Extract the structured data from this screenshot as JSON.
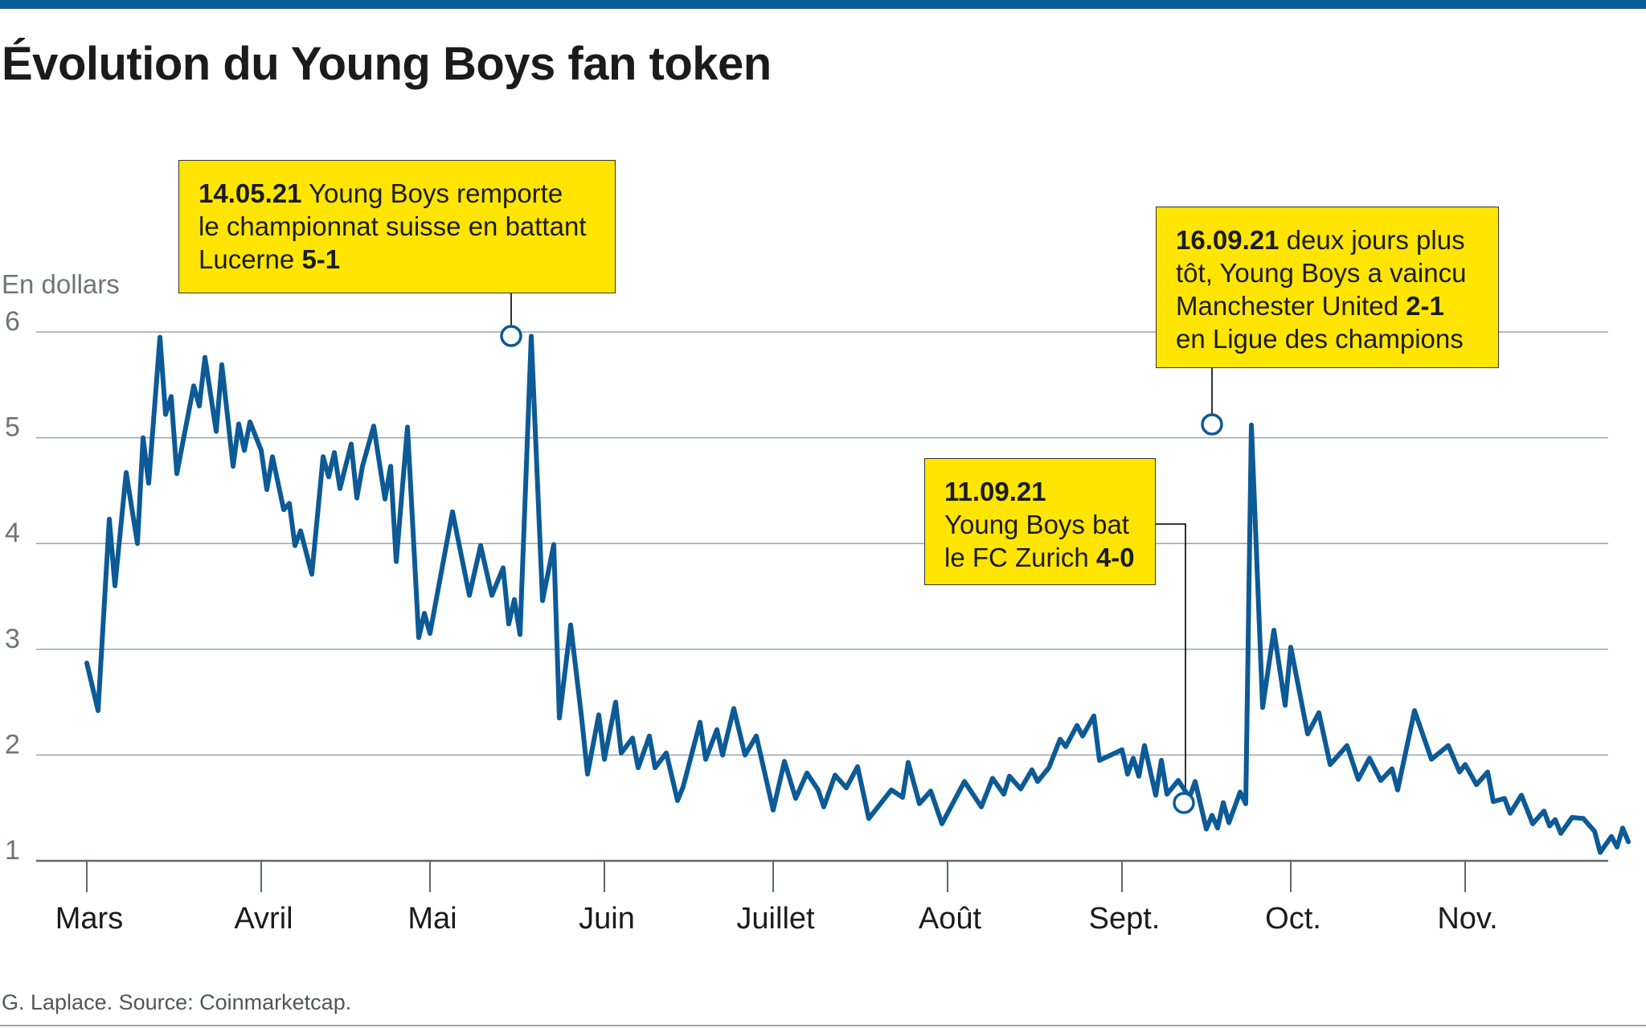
{
  "title": "Évolution du Young Boys fan token",
  "source": "G. Laplace. Source: Coinmarketcap.",
  "colors": {
    "line": "#0c5a96",
    "annotation_fill": "#ffe500",
    "gridline": "#9aa4ab",
    "top_bar": "#0c5a96"
  },
  "annotations": [
    {
      "date_bold": "14.05.21",
      "rest": [
        " Young Boys remporte",
        "le championnat suisse en battant",
        "Lucerne "
      ],
      "score": "5-1",
      "x": "2021-05-14",
      "y": 5.96
    },
    {
      "date_bold": "11.09.21",
      "rest": [
        "Young Boys bat",
        "le FC Zurich "
      ],
      "score": "4-0",
      "x": "2021-09-11",
      "y": 1.55
    },
    {
      "date_bold": "16.09.21",
      "rest": [
        " deux jours plus",
        "tôt, Young Boys a vaincu",
        "Manchester United ",
        "en Ligue des champions"
      ],
      "score": "2-1",
      "x": "2021-09-16",
      "y": 5.12
    }
  ],
  "chart_data": {
    "type": "line",
    "ylabel": "En dollars",
    "xlabel": "",
    "ylim": [
      1,
      6
    ],
    "yticks": [
      1,
      2,
      3,
      4,
      5,
      6
    ],
    "xlim": [
      "2021-03-01",
      "2021-11-26"
    ],
    "xticks": [
      {
        "label": "Mars",
        "date": "2021-03-01"
      },
      {
        "label": "Avril",
        "date": "2021-04-01"
      },
      {
        "label": "Mai",
        "date": "2021-05-01"
      },
      {
        "label": "Juin",
        "date": "2021-06-01"
      },
      {
        "label": "Juillet",
        "date": "2021-07-01"
      },
      {
        "label": "Août",
        "date": "2021-08-01"
      },
      {
        "label": "Sept.",
        "date": "2021-09-01"
      },
      {
        "label": "Oct.",
        "date": "2021-10-01"
      },
      {
        "label": "Nov.",
        "date": "2021-11-01"
      }
    ],
    "grid": true,
    "legend": "none",
    "series": [
      {
        "points": [
          [
            "2021-03-01",
            2.87
          ],
          [
            "2021-03-03",
            2.42
          ],
          [
            "2021-03-05",
            4.23
          ],
          [
            "2021-03-06",
            3.6
          ],
          [
            "2021-03-08",
            4.67
          ],
          [
            "2021-03-10",
            4.0
          ],
          [
            "2021-03-11",
            5.0
          ],
          [
            "2021-03-12",
            4.57
          ],
          [
            "2021-03-14",
            5.95
          ],
          [
            "2021-03-15",
            5.22
          ],
          [
            "2021-03-16",
            5.39
          ],
          [
            "2021-03-17",
            4.66
          ],
          [
            "2021-03-20",
            5.49
          ],
          [
            "2021-03-21",
            5.3
          ],
          [
            "2021-03-22",
            5.76
          ],
          [
            "2021-03-24",
            5.06
          ],
          [
            "2021-03-25",
            5.69
          ],
          [
            "2021-03-27",
            4.73
          ],
          [
            "2021-03-28",
            5.13
          ],
          [
            "2021-03-29",
            4.88
          ],
          [
            "2021-03-30",
            5.15
          ],
          [
            "2021-04-01",
            4.88
          ],
          [
            "2021-04-02",
            4.51
          ],
          [
            "2021-04-03",
            4.82
          ],
          [
            "2021-04-05",
            4.32
          ],
          [
            "2021-04-06",
            4.38
          ],
          [
            "2021-04-07",
            3.98
          ],
          [
            "2021-04-08",
            4.12
          ],
          [
            "2021-04-10",
            3.71
          ],
          [
            "2021-04-12",
            4.82
          ],
          [
            "2021-04-13",
            4.63
          ],
          [
            "2021-04-14",
            4.86
          ],
          [
            "2021-04-15",
            4.52
          ],
          [
            "2021-04-17",
            4.94
          ],
          [
            "2021-04-18",
            4.43
          ],
          [
            "2021-04-19",
            4.73
          ],
          [
            "2021-04-21",
            5.11
          ],
          [
            "2021-04-23",
            4.42
          ],
          [
            "2021-04-24",
            4.73
          ],
          [
            "2021-04-25",
            3.83
          ],
          [
            "2021-04-27",
            5.1
          ],
          [
            "2021-04-29",
            3.11
          ],
          [
            "2021-04-30",
            3.34
          ],
          [
            "2021-05-01",
            3.15
          ],
          [
            "2021-05-05",
            4.3
          ],
          [
            "2021-05-08",
            3.51
          ],
          [
            "2021-05-10",
            3.98
          ],
          [
            "2021-05-12",
            3.51
          ],
          [
            "2021-05-14",
            3.77
          ],
          [
            "2021-05-15",
            3.24
          ],
          [
            "2021-05-16",
            3.47
          ],
          [
            "2021-05-17",
            3.14
          ],
          [
            "2021-05-19",
            5.96
          ],
          [
            "2021-05-21",
            3.46
          ],
          [
            "2021-05-23",
            3.99
          ],
          [
            "2021-05-24",
            2.35
          ],
          [
            "2021-05-26",
            3.23
          ],
          [
            "2021-05-28",
            2.33
          ],
          [
            "2021-05-29",
            1.82
          ],
          [
            "2021-05-31",
            2.38
          ],
          [
            "2021-06-01",
            1.96
          ],
          [
            "2021-06-03",
            2.5
          ],
          [
            "2021-06-04",
            2.02
          ],
          [
            "2021-06-06",
            2.16
          ],
          [
            "2021-06-07",
            1.88
          ],
          [
            "2021-06-09",
            2.18
          ],
          [
            "2021-06-10",
            1.88
          ],
          [
            "2021-06-12",
            2.02
          ],
          [
            "2021-06-14",
            1.57
          ],
          [
            "2021-06-15",
            1.7
          ],
          [
            "2021-06-18",
            2.31
          ],
          [
            "2021-06-19",
            1.96
          ],
          [
            "2021-06-21",
            2.24
          ],
          [
            "2021-06-22",
            2.0
          ],
          [
            "2021-06-24",
            2.44
          ],
          [
            "2021-06-26",
            2.0
          ],
          [
            "2021-06-28",
            2.18
          ],
          [
            "2021-07-01",
            1.48
          ],
          [
            "2021-07-03",
            1.94
          ],
          [
            "2021-07-05",
            1.59
          ],
          [
            "2021-07-07",
            1.83
          ],
          [
            "2021-07-09",
            1.67
          ],
          [
            "2021-07-10",
            1.51
          ],
          [
            "2021-07-12",
            1.81
          ],
          [
            "2021-07-14",
            1.69
          ],
          [
            "2021-07-16",
            1.89
          ],
          [
            "2021-07-18",
            1.4
          ],
          [
            "2021-07-22",
            1.67
          ],
          [
            "2021-07-24",
            1.6
          ],
          [
            "2021-07-25",
            1.93
          ],
          [
            "2021-07-27",
            1.54
          ],
          [
            "2021-07-29",
            1.66
          ],
          [
            "2021-07-31",
            1.35
          ],
          [
            "2021-08-04",
            1.75
          ],
          [
            "2021-08-07",
            1.51
          ],
          [
            "2021-08-09",
            1.78
          ],
          [
            "2021-08-11",
            1.63
          ],
          [
            "2021-08-12",
            1.8
          ],
          [
            "2021-08-14",
            1.68
          ],
          [
            "2021-08-16",
            1.86
          ],
          [
            "2021-08-17",
            1.75
          ],
          [
            "2021-08-19",
            1.88
          ],
          [
            "2021-08-21",
            2.15
          ],
          [
            "2021-08-22",
            2.08
          ],
          [
            "2021-08-24",
            2.28
          ],
          [
            "2021-08-25",
            2.18
          ],
          [
            "2021-08-27",
            2.37
          ],
          [
            "2021-08-28",
            1.95
          ],
          [
            "2021-09-01",
            2.05
          ],
          [
            "2021-09-02",
            1.82
          ],
          [
            "2021-09-03",
            1.97
          ],
          [
            "2021-09-04",
            1.8
          ],
          [
            "2021-09-05",
            2.09
          ],
          [
            "2021-09-07",
            1.62
          ],
          [
            "2021-09-08",
            1.95
          ],
          [
            "2021-09-09",
            1.63
          ],
          [
            "2021-09-11",
            1.76
          ],
          [
            "2021-09-13",
            1.6
          ],
          [
            "2021-09-14",
            1.75
          ],
          [
            "2021-09-16",
            1.3
          ],
          [
            "2021-09-17",
            1.43
          ],
          [
            "2021-09-18",
            1.31
          ],
          [
            "2021-09-19",
            1.55
          ],
          [
            "2021-09-20",
            1.36
          ],
          [
            "2021-09-22",
            1.65
          ],
          [
            "2021-09-23",
            1.54
          ],
          [
            "2021-09-24",
            5.12
          ],
          [
            "2021-09-26",
            2.45
          ],
          [
            "2021-09-28",
            3.18
          ],
          [
            "2021-09-30",
            2.47
          ],
          [
            "2021-10-01",
            3.02
          ],
          [
            "2021-10-04",
            2.2
          ],
          [
            "2021-10-06",
            2.4
          ],
          [
            "2021-10-08",
            1.91
          ],
          [
            "2021-10-11",
            2.09
          ],
          [
            "2021-10-13",
            1.77
          ],
          [
            "2021-10-15",
            1.97
          ],
          [
            "2021-10-17",
            1.76
          ],
          [
            "2021-10-19",
            1.87
          ],
          [
            "2021-10-20",
            1.67
          ],
          [
            "2021-10-23",
            2.42
          ],
          [
            "2021-10-26",
            1.96
          ],
          [
            "2021-10-29",
            2.09
          ],
          [
            "2021-10-31",
            1.84
          ],
          [
            "2021-11-01",
            1.91
          ],
          [
            "2021-11-03",
            1.72
          ],
          [
            "2021-11-05",
            1.84
          ],
          [
            "2021-11-06",
            1.56
          ],
          [
            "2021-11-08",
            1.59
          ],
          [
            "2021-11-09",
            1.45
          ],
          [
            "2021-11-11",
            1.62
          ],
          [
            "2021-11-13",
            1.35
          ],
          [
            "2021-11-15",
            1.47
          ],
          [
            "2021-11-16",
            1.33
          ],
          [
            "2021-11-17",
            1.39
          ],
          [
            "2021-11-18",
            1.26
          ],
          [
            "2021-11-20",
            1.41
          ],
          [
            "2021-11-22",
            1.4
          ],
          [
            "2021-11-24",
            1.28
          ],
          [
            "2021-11-25",
            1.08
          ],
          [
            "2021-11-27",
            1.23
          ],
          [
            "2021-11-28",
            1.13
          ],
          [
            "2021-11-29",
            1.31
          ],
          [
            "2021-11-30",
            1.18
          ]
        ]
      }
    ]
  }
}
